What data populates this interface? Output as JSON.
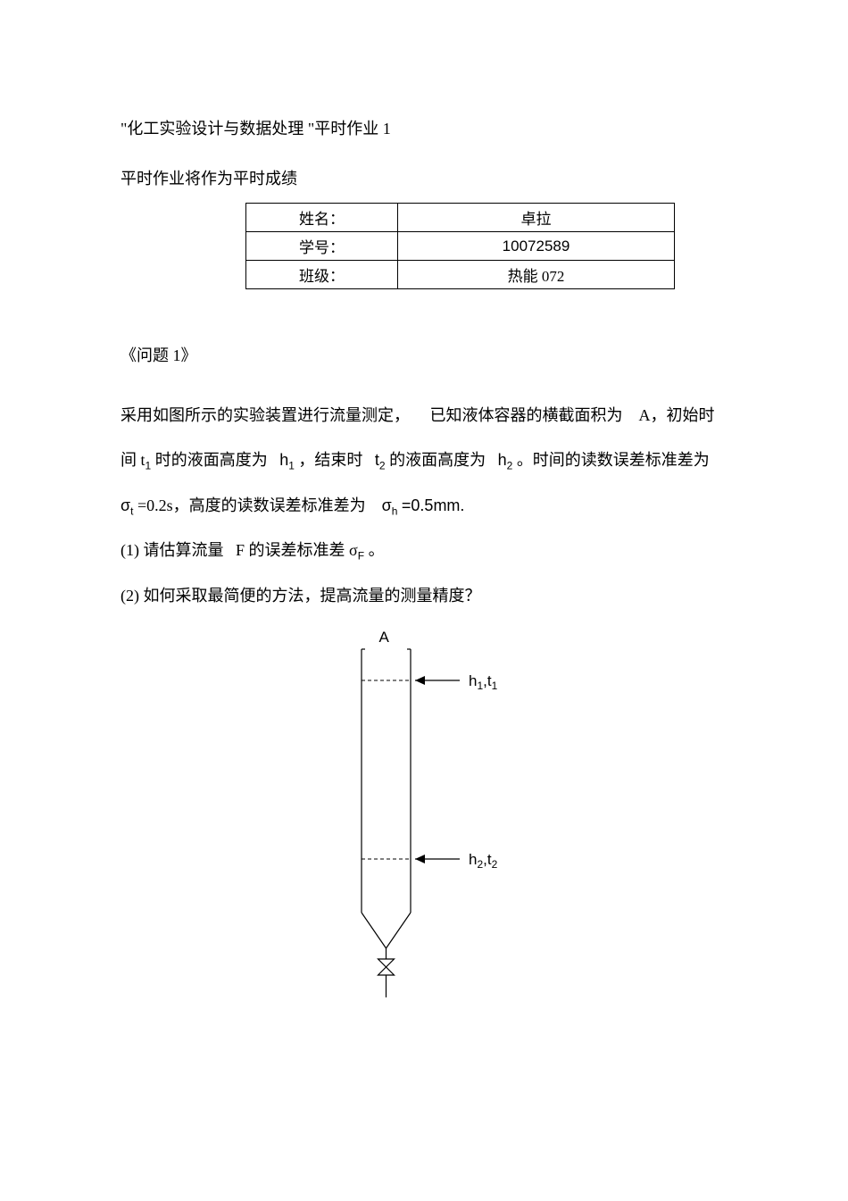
{
  "title": "\"化工实验设计与数据处理  \"平时作业  1",
  "subtitle": "平时作业将作为平时成绩",
  "info": {
    "name_label": "姓名：",
    "name_value": "卓拉",
    "id_label": "学号：",
    "id_value": "10072589",
    "class_label": "班级：",
    "class_value": "热能 072"
  },
  "problem": {
    "header": "《问题  1》",
    "line1_a": "采用如图所示的实验装置进行流量测定，",
    "line1_b": "已知液体容器的横截面积为",
    "line1_c": "A，初始时",
    "line2_a": "间 t",
    "line2_b_sub": "1",
    "line2_c": "时的液面高度为",
    "line2_d": "h",
    "line2_d_sub": "1",
    "line2_e": "，结束时",
    "line2_f": "t",
    "line2_f_sub": "2",
    "line2_g": "的液面高度为",
    "line2_h": "h",
    "line2_h_sub": "2",
    "line2_i": "。时间的读数误差标准差为",
    "line3_a": "σ",
    "line3_a_sub": "t",
    "line3_b": "=0.2s，高度的读数误差标准差为",
    "line3_c": "σ",
    "line3_c_sub": "h",
    "line3_d": "=0.5mm.",
    "q1_a": "(1)  请估算流量",
    "q1_b": "F 的误差标准差  σ",
    "q1_b_sub": "F",
    "q1_c": "。",
    "q2": "(2)  如何采取最简便的方法，提高流量的测量精度？"
  },
  "diagram": {
    "label_A": "A",
    "label_h1": "h₁,t₁",
    "label_h2": "h₂,t₂",
    "stroke": "#000000",
    "stroke_width": 1.2,
    "font_family": "Arial, sans-serif",
    "font_size": 17,
    "sub_font_size": 12
  }
}
